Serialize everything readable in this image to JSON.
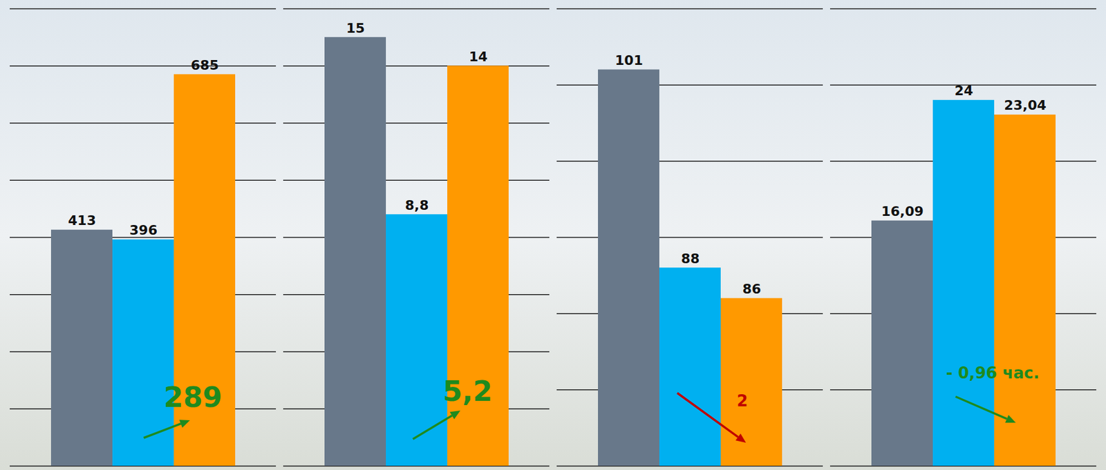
{
  "chart_data": [
    {
      "type": "bar",
      "categories": [
        null,
        null,
        null
      ],
      "values": [
        413,
        396,
        685
      ],
      "colors": [
        "#68788a",
        "#00b0f0",
        "#ff9900"
      ],
      "ylim": [
        0,
        800
      ],
      "yticks": [
        0,
        100,
        200,
        300,
        400,
        500,
        600,
        700,
        800
      ],
      "grid": true,
      "data_labels": true,
      "tick_labels": false,
      "annotations": [
        {
          "text": "289",
          "color": "#1e8a1e"
        }
      ]
    },
    {
      "type": "bar",
      "categories": [
        null,
        null,
        null
      ],
      "values": [
        15,
        8.8,
        14
      ],
      "value_labels": [
        "15",
        "8,8",
        "14"
      ],
      "colors": [
        "#68788a",
        "#00b0f0",
        "#ff9900"
      ],
      "ylim": [
        0,
        16
      ],
      "yticks": [
        0,
        2,
        4,
        6,
        8,
        10,
        12,
        14,
        16
      ],
      "grid": true,
      "data_labels": true,
      "tick_labels": false,
      "annotations": [
        {
          "text": "5,2",
          "color": "#1e8a1e"
        }
      ]
    },
    {
      "type": "bar",
      "categories": [
        null,
        null,
        null
      ],
      "values": [
        101,
        88,
        86
      ],
      "colors": [
        "#68788a",
        "#00b0f0",
        "#ff9900"
      ],
      "ylim": [
        75,
        105
      ],
      "yticks": [
        75,
        80,
        85,
        90,
        95,
        100,
        105
      ],
      "grid": true,
      "data_labels": true,
      "tick_labels": false,
      "annotations": [
        {
          "text": "2",
          "color": "#c00000"
        }
      ]
    },
    {
      "type": "bar",
      "categories": [
        null,
        null,
        null
      ],
      "values": [
        16.09,
        24,
        23.04
      ],
      "value_labels": [
        "16,09",
        "24",
        "23,04"
      ],
      "colors": [
        "#68788a",
        "#00b0f0",
        "#ff9900"
      ],
      "ylim": [
        0,
        30
      ],
      "yticks": [
        0,
        5,
        10,
        15,
        20,
        25,
        30
      ],
      "grid": true,
      "data_labels": true,
      "tick_labels": false,
      "annotations": [
        {
          "text": "- 0,96 час.",
          "color": "#1e8a1e"
        }
      ]
    }
  ]
}
